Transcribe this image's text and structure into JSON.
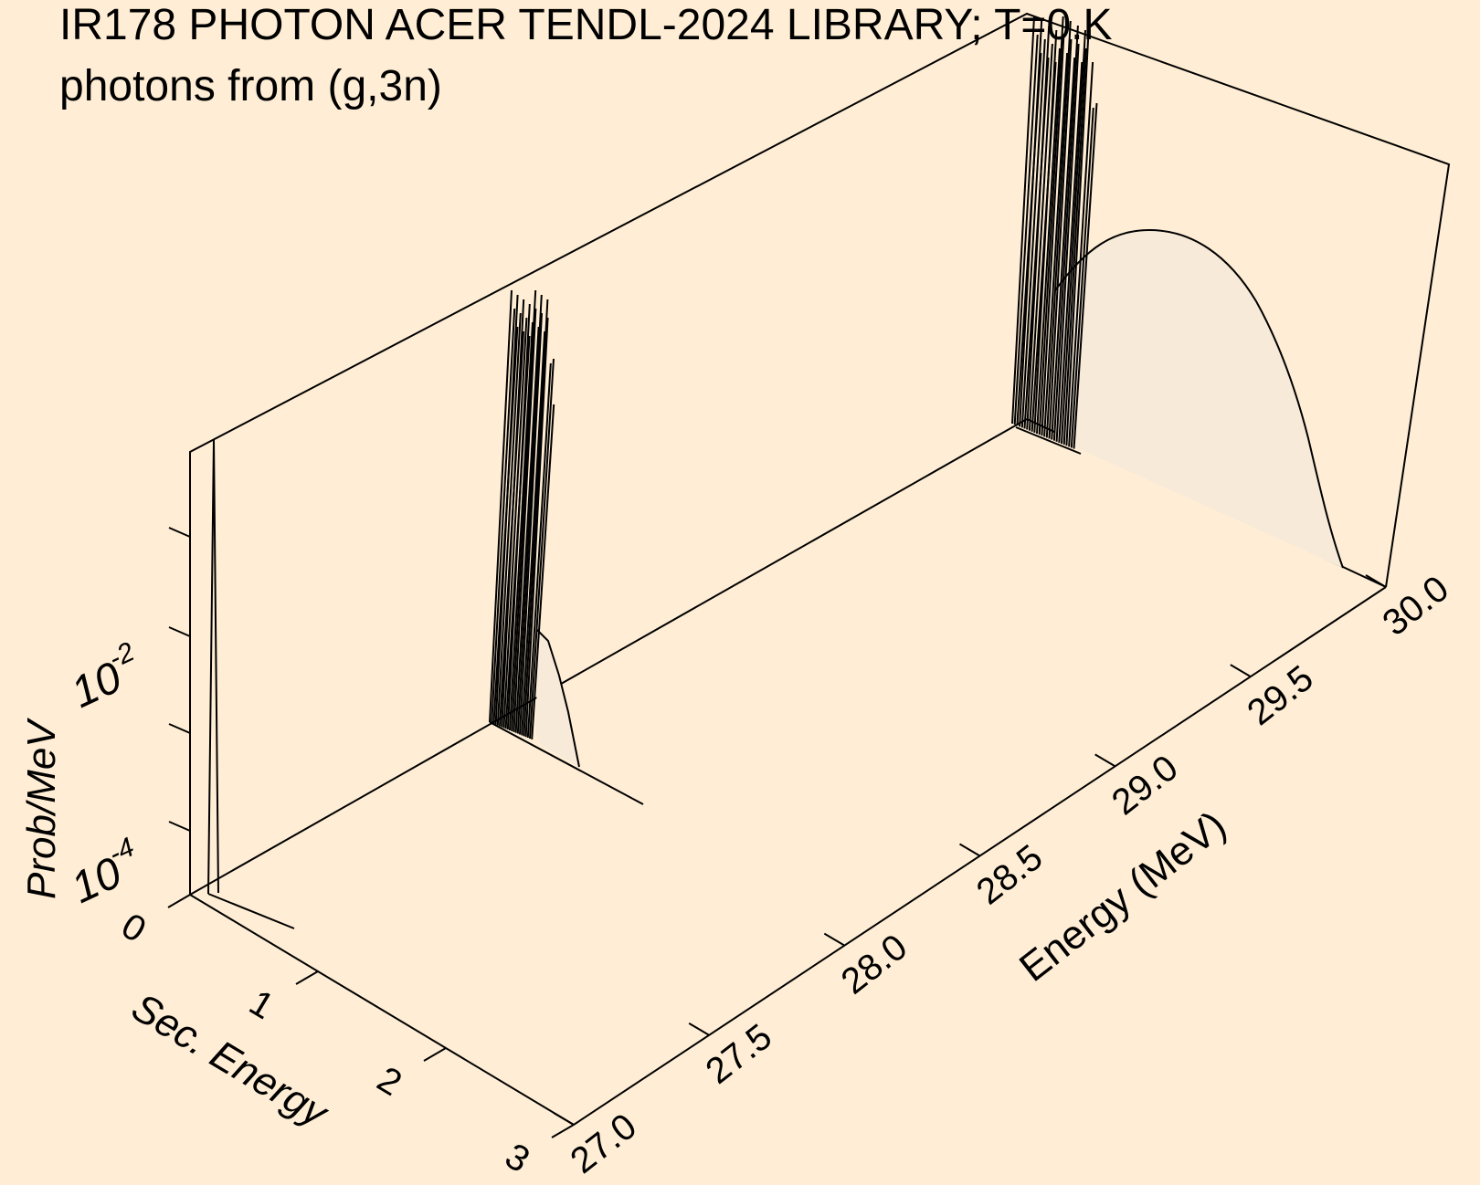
{
  "title_line1": "IR178 PHOTON ACER TENDL-2024 LIBRARY; T=0.K",
  "title_line2": "photons from (g,3n)",
  "chart_data": {
    "type": "3d-waterfall",
    "title": "IR178 PHOTON ACER TENDL-2024 LIBRARY; T=0.K",
    "subtitle": "photons from (g,3n)",
    "x_axis": {
      "label": "Energy (MeV)",
      "range": [
        27.0,
        30.0
      ],
      "ticks": [
        "27.0",
        "27.5",
        "28.0",
        "28.5",
        "29.0",
        "29.5",
        "30.0"
      ]
    },
    "y_axis": {
      "label": "Sec. Energy",
      "range": [
        0,
        3
      ],
      "ticks": [
        "0",
        "1",
        "2",
        "3"
      ]
    },
    "z_axis": {
      "label": "Prob/MeV",
      "scale": "log",
      "ticks": [
        {
          "base": "10",
          "exp": "-4"
        },
        {
          "base": "10",
          "exp": "-2"
        }
      ]
    },
    "slices": [
      {
        "incident_energy": 27.0,
        "description": "single line near zero secondary energy"
      },
      {
        "incident_energy": 28.0,
        "description": "dense discrete lines plus small continuum"
      },
      {
        "incident_energy": 30.0,
        "description": "dense discrete lines plus broad continuum"
      }
    ]
  }
}
